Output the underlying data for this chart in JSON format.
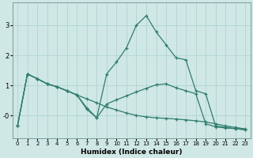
{
  "xlabel": "Humidex (Indice chaleur)",
  "background_color": "#cfe8e5",
  "grid_color": "#afd4d0",
  "line_color": "#2e7d6e",
  "xlim": [
    -0.5,
    23.5
  ],
  "ylim": [
    -0.75,
    3.75
  ],
  "yticks": [
    0,
    1,
    2,
    3
  ],
  "ytick_labels": [
    "-0",
    "1",
    "2",
    "3"
  ],
  "xticks": [
    0,
    1,
    2,
    3,
    4,
    5,
    6,
    7,
    8,
    9,
    10,
    11,
    12,
    13,
    14,
    15,
    16,
    17,
    18,
    19,
    20,
    21,
    22,
    23
  ],
  "series": [
    {
      "x": [
        0,
        1,
        2,
        3,
        4,
        5,
        6,
        7,
        8,
        9,
        10,
        11,
        12,
        13,
        14,
        15,
        16,
        17,
        18,
        19,
        20,
        21,
        22,
        23
      ],
      "y": [
        -0.35,
        1.38,
        1.22,
        1.05,
        0.95,
        0.82,
        0.68,
        0.55,
        0.42,
        0.28,
        0.18,
        0.08,
        0.0,
        -0.05,
        -0.08,
        -0.1,
        -0.12,
        -0.15,
        -0.18,
        -0.22,
        -0.28,
        -0.35,
        -0.4,
        -0.45
      ]
    },
    {
      "x": [
        0,
        1,
        2,
        3,
        4,
        5,
        6,
        7,
        8,
        9,
        10,
        11,
        12,
        13,
        14,
        15,
        16,
        17,
        18,
        19,
        20,
        21,
        22,
        23
      ],
      "y": [
        -0.35,
        1.38,
        1.22,
        1.05,
        0.95,
        0.82,
        0.68,
        0.25,
        -0.08,
        0.38,
        0.52,
        0.65,
        0.78,
        0.9,
        1.02,
        1.05,
        0.92,
        0.82,
        0.72,
        -0.28,
        -0.38,
        -0.42,
        -0.44,
        -0.48
      ]
    },
    {
      "x": [
        0,
        1,
        2,
        3,
        4,
        5,
        6,
        7,
        8,
        9,
        10,
        11,
        12,
        13,
        14,
        15,
        16,
        17,
        18,
        19,
        20,
        21,
        22,
        23
      ],
      "y": [
        -0.35,
        1.38,
        1.22,
        1.05,
        0.95,
        0.82,
        0.68,
        0.2,
        -0.08,
        1.38,
        1.78,
        2.25,
        3.0,
        3.32,
        2.78,
        2.35,
        1.92,
        1.85,
        0.82,
        0.72,
        -0.35,
        -0.4,
        -0.44,
        -0.48
      ]
    }
  ]
}
